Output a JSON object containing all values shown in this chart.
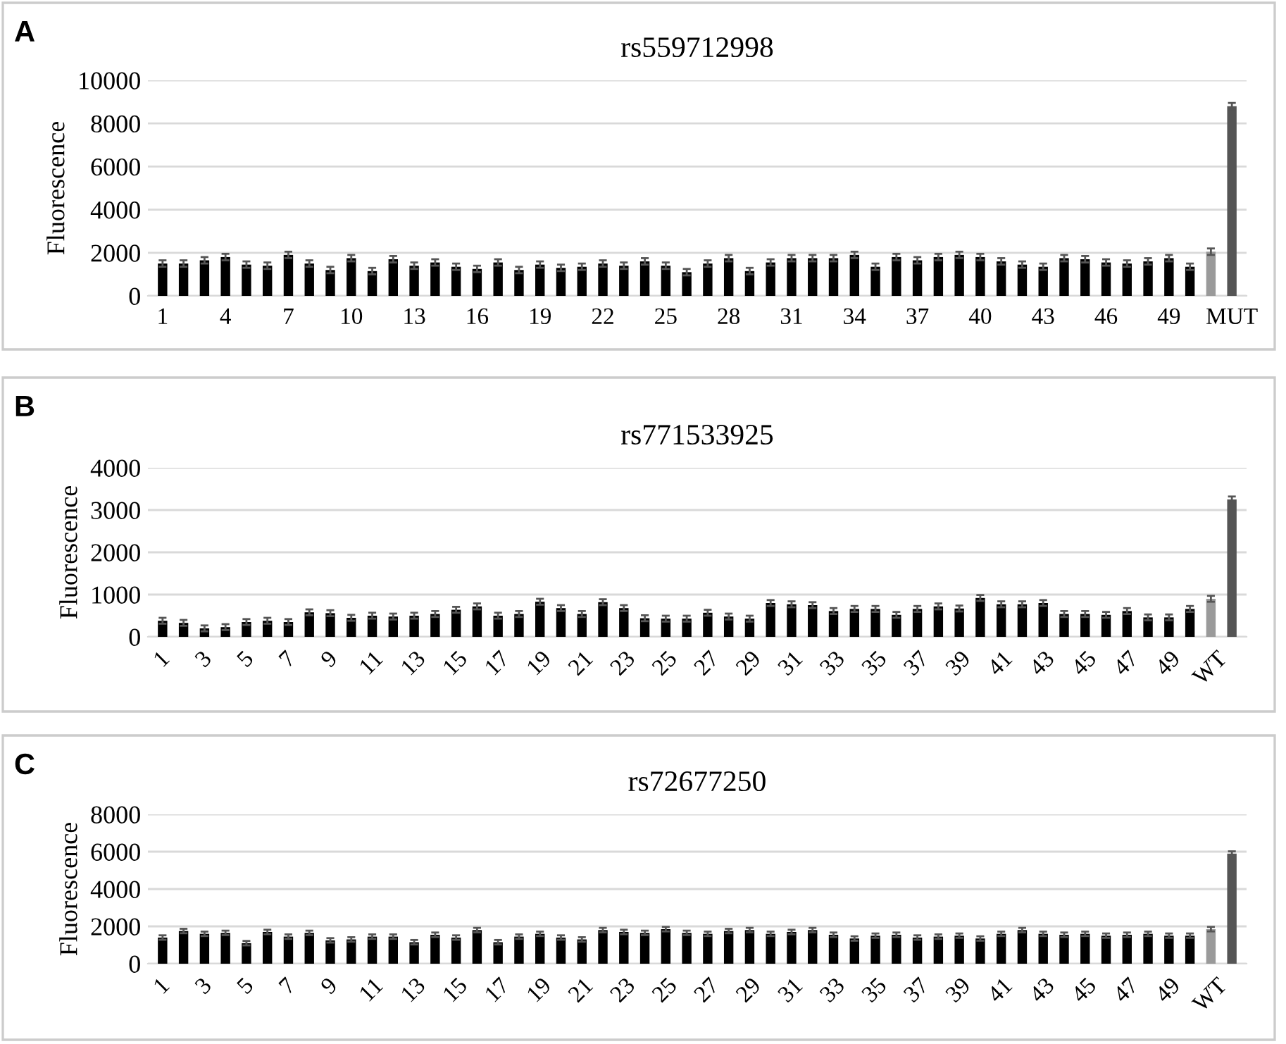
{
  "chart_data": [
    {
      "type": "bar",
      "title": "rs559712998",
      "ylabel": "Fluorescence",
      "annotations": [
        "A"
      ],
      "categories": [
        "1",
        null,
        null,
        "4",
        null,
        null,
        "7",
        null,
        null,
        "10",
        null,
        null,
        "13",
        null,
        null,
        "16",
        null,
        null,
        "19",
        null,
        null,
        "22",
        null,
        null,
        "25",
        null,
        null,
        "28",
        null,
        null,
        "31",
        null,
        null,
        "34",
        null,
        null,
        "37",
        null,
        null,
        "40",
        null,
        null,
        "43",
        null,
        null,
        "46",
        null,
        null,
        "49",
        null,
        null,
        "MUT"
      ],
      "values": [
        1500,
        1500,
        1650,
        1800,
        1450,
        1400,
        1900,
        1500,
        1200,
        1750,
        1150,
        1700,
        1400,
        1550,
        1350,
        1250,
        1550,
        1200,
        1450,
        1300,
        1350,
        1500,
        1400,
        1600,
        1400,
        1100,
        1500,
        1750,
        1150,
        1550,
        1750,
        1750,
        1750,
        1900,
        1350,
        1800,
        1650,
        1800,
        1900,
        1800,
        1600,
        1450,
        1350,
        1750,
        1700,
        1550,
        1500,
        1600,
        1750,
        1350,
        2050,
        8800
      ],
      "errors": [
        150,
        150,
        150,
        150,
        150,
        150,
        150,
        150,
        150,
        150,
        150,
        150,
        150,
        150,
        150,
        150,
        150,
        150,
        150,
        150,
        150,
        150,
        150,
        150,
        150,
        150,
        150,
        150,
        150,
        150,
        150,
        150,
        150,
        150,
        150,
        150,
        150,
        150,
        150,
        150,
        150,
        150,
        150,
        150,
        150,
        150,
        150,
        150,
        150,
        150,
        150,
        150
      ],
      "colors": [
        "#000000",
        "#000000",
        "#000000",
        "#000000",
        "#000000",
        "#000000",
        "#000000",
        "#000000",
        "#000000",
        "#000000",
        "#000000",
        "#000000",
        "#000000",
        "#000000",
        "#000000",
        "#000000",
        "#000000",
        "#000000",
        "#000000",
        "#000000",
        "#000000",
        "#000000",
        "#000000",
        "#000000",
        "#000000",
        "#000000",
        "#000000",
        "#000000",
        "#000000",
        "#000000",
        "#000000",
        "#000000",
        "#000000",
        "#000000",
        "#000000",
        "#000000",
        "#000000",
        "#000000",
        "#000000",
        "#000000",
        "#000000",
        "#000000",
        "#000000",
        "#000000",
        "#000000",
        "#000000",
        "#000000",
        "#000000",
        "#000000",
        "#000000",
        "#9a9a9a",
        "#555555"
      ],
      "ylim": [
        0,
        10000
      ],
      "yticks": [
        0,
        2000,
        4000,
        6000,
        8000,
        10000
      ],
      "grid": "y"
    },
    {
      "type": "bar",
      "title": "rs771533925",
      "ylabel": "Fluorescence",
      "annotations": [
        "B"
      ],
      "categories": [
        "1",
        null,
        "3",
        null,
        "5",
        null,
        "7",
        null,
        "9",
        null,
        "11",
        null,
        "13",
        null,
        "15",
        null,
        "17",
        null,
        "19",
        null,
        "21",
        null,
        "23",
        null,
        "25",
        null,
        "27",
        null,
        "29",
        null,
        "31",
        null,
        "33",
        null,
        "35",
        null,
        "37",
        null,
        "39",
        null,
        "41",
        null,
        "43",
        null,
        "45",
        null,
        "47",
        null,
        "49",
        null,
        "WT",
        null
      ],
      "values": [
        380,
        330,
        200,
        230,
        350,
        380,
        350,
        580,
        560,
        450,
        500,
        480,
        500,
        540,
        640,
        720,
        500,
        540,
        830,
        680,
        540,
        820,
        680,
        440,
        430,
        430,
        570,
        480,
        430,
        800,
        770,
        750,
        610,
        660,
        660,
        520,
        660,
        720,
        670,
        920,
        770,
        770,
        800,
        540,
        540,
        520,
        610,
        460,
        460,
        660,
        900,
        3250
      ],
      "errors": [
        70,
        70,
        70,
        70,
        70,
        70,
        70,
        70,
        70,
        70,
        70,
        70,
        70,
        70,
        70,
        70,
        70,
        70,
        70,
        70,
        70,
        70,
        70,
        70,
        70,
        70,
        70,
        70,
        70,
        70,
        70,
        70,
        70,
        70,
        70,
        70,
        70,
        70,
        70,
        70,
        70,
        70,
        70,
        70,
        70,
        70,
        70,
        70,
        70,
        70,
        70,
        70
      ],
      "colors": [
        "#000000",
        "#000000",
        "#000000",
        "#000000",
        "#000000",
        "#000000",
        "#000000",
        "#000000",
        "#000000",
        "#000000",
        "#000000",
        "#000000",
        "#000000",
        "#000000",
        "#000000",
        "#000000",
        "#000000",
        "#000000",
        "#000000",
        "#000000",
        "#000000",
        "#000000",
        "#000000",
        "#000000",
        "#000000",
        "#000000",
        "#000000",
        "#000000",
        "#000000",
        "#000000",
        "#000000",
        "#000000",
        "#000000",
        "#000000",
        "#000000",
        "#000000",
        "#000000",
        "#000000",
        "#000000",
        "#000000",
        "#000000",
        "#000000",
        "#000000",
        "#000000",
        "#000000",
        "#000000",
        "#000000",
        "#000000",
        "#000000",
        "#000000",
        "#9a9a9a",
        "#555555"
      ],
      "ylim": [
        0,
        4000
      ],
      "yticks": [
        0,
        1000,
        2000,
        3000,
        4000
      ],
      "grid": "y"
    },
    {
      "type": "bar",
      "title": "rs72677250",
      "ylabel": "Fluorescence",
      "annotations": [
        "C"
      ],
      "categories": [
        "1",
        null,
        "3",
        null,
        "5",
        null,
        "7",
        null,
        "9",
        null,
        "11",
        null,
        "13",
        null,
        "15",
        null,
        "17",
        null,
        "19",
        null,
        "21",
        null,
        "23",
        null,
        "25",
        null,
        "27",
        null,
        "29",
        null,
        "31",
        null,
        "33",
        null,
        "35",
        null,
        "37",
        null,
        "39",
        null,
        "41",
        null,
        "43",
        null,
        "45",
        null,
        "47",
        null,
        "49",
        null,
        "WT",
        null
      ],
      "values": [
        1400,
        1750,
        1600,
        1650,
        1100,
        1700,
        1450,
        1650,
        1250,
        1300,
        1450,
        1450,
        1150,
        1550,
        1400,
        1800,
        1150,
        1450,
        1600,
        1400,
        1300,
        1800,
        1700,
        1650,
        1850,
        1650,
        1600,
        1750,
        1800,
        1600,
        1700,
        1800,
        1550,
        1350,
        1500,
        1550,
        1400,
        1450,
        1500,
        1350,
        1600,
        1800,
        1600,
        1550,
        1600,
        1500,
        1550,
        1600,
        1500,
        1500,
        1850,
        5900
      ],
      "errors": [
        120,
        120,
        120,
        120,
        120,
        120,
        120,
        120,
        120,
        120,
        120,
        120,
        120,
        120,
        120,
        120,
        120,
        120,
        120,
        120,
        120,
        120,
        120,
        120,
        120,
        120,
        120,
        120,
        120,
        120,
        120,
        120,
        120,
        120,
        120,
        120,
        120,
        120,
        120,
        120,
        120,
        120,
        120,
        120,
        120,
        120,
        120,
        120,
        120,
        120,
        120,
        120
      ],
      "colors": [
        "#000000",
        "#000000",
        "#000000",
        "#000000",
        "#000000",
        "#000000",
        "#000000",
        "#000000",
        "#000000",
        "#000000",
        "#000000",
        "#000000",
        "#000000",
        "#000000",
        "#000000",
        "#000000",
        "#000000",
        "#000000",
        "#000000",
        "#000000",
        "#000000",
        "#000000",
        "#000000",
        "#000000",
        "#000000",
        "#000000",
        "#000000",
        "#000000",
        "#000000",
        "#000000",
        "#000000",
        "#000000",
        "#000000",
        "#000000",
        "#000000",
        "#000000",
        "#000000",
        "#000000",
        "#000000",
        "#000000",
        "#000000",
        "#000000",
        "#000000",
        "#000000",
        "#000000",
        "#000000",
        "#000000",
        "#000000",
        "#000000",
        "#000000",
        "#9a9a9a",
        "#555555"
      ],
      "ylim": [
        0,
        8000
      ],
      "yticks": [
        0,
        2000,
        4000,
        6000,
        8000
      ],
      "grid": "y"
    }
  ]
}
